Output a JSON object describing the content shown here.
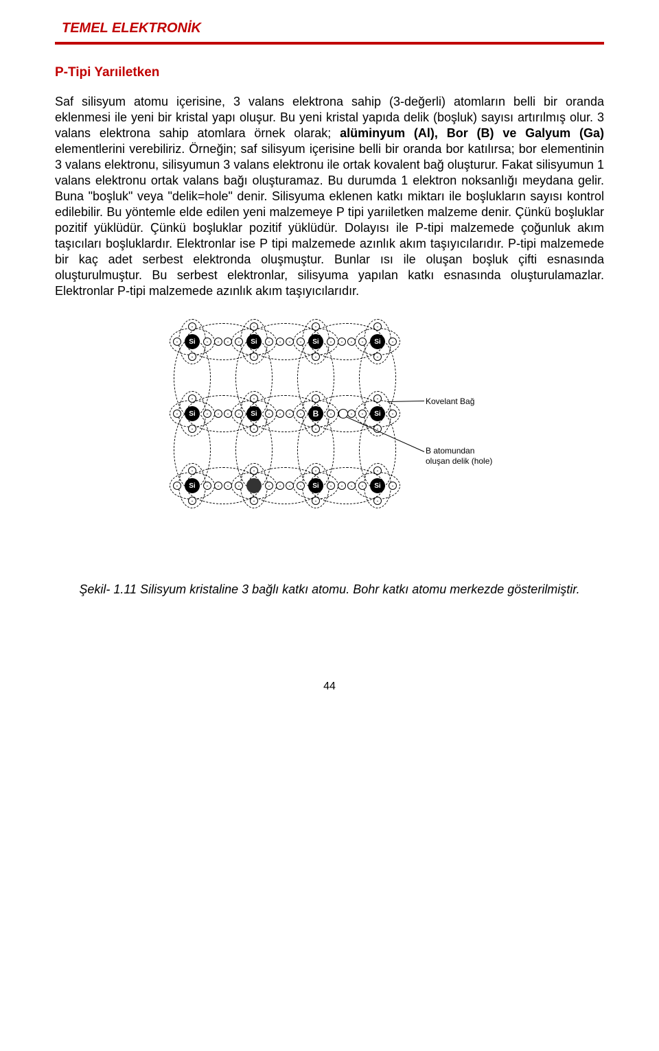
{
  "header": {
    "title": "TEMEL ELEKTRONİK"
  },
  "section": {
    "title": "P-Tipi Yarıiletken"
  },
  "paragraph": {
    "p1a": "Saf silisyum atomu içerisine, 3 valans elektrona sahip (3-değerli) atomların belli bir oranda eklenmesi ile yeni bir kristal yapı oluşur. Bu yeni kristal yapıda delik (boşluk) sayısı artırılmış olur. 3 valans elektrona sahip atomlara örnek olarak; ",
    "p1b": "alüminyum (Al), Bor (B) ve Galyum (Ga)",
    "p1c": " elementlerini verebiliriz. Örneğin; saf silisyum içerisine belli bir oranda bor katılırsa; bor elementinin 3 valans elektronu, silisyumun 3 valans elektronu ile ortak kovalent bağ oluşturur. Fakat silisyumun 1 valans elektronu ortak valans bağı oluşturamaz. Bu durumda 1 elektron noksanlığı meydana gelir. Buna \"boşluk\" veya \"delik=hole\" denir.",
    "p2": "Silisyuma eklenen katkı miktarı ile boşlukların sayısı kontrol edilebilir. Bu yöntemle elde edilen yeni malzemeye P tipi yarıiletken malzeme denir. Çünkü boşluklar pozitif yüklüdür. Çünkü boşluklar pozitif yüklüdür. Dolayısı ile P-tipi malzemede çoğunluk akım taşıcıları boşluklardır. Elektronlar ise P tipi malzemede azınlık akım taşıyıcılarıdır. P-tipi malzemede bir kaç adet serbest elektronda oluşmuştur. Bunlar ısı ile oluşan boşluk çifti esnasında oluşturulmuştur. Bu serbest elektronlar, silisyuma yapılan katkı esnasında oluşturulamazlar. Elektronlar P-tipi malzemede azınlık akım taşıyıcılarıdır."
  },
  "diagram": {
    "atom_label_si": "Si",
    "atom_label_b": "B",
    "electron_glyph": "-",
    "annotation_bond": "Kovelant Bağ",
    "annotation_hole_line1": "B atomundan",
    "annotation_hole_line2": "oluşan delik (hole)",
    "grid": {
      "cols": [
        60,
        150,
        240,
        330
      ],
      "rows": [
        40,
        145,
        250
      ],
      "spacing": 90,
      "orbit_w": 66,
      "orbit_h": 40
    },
    "colors": {
      "stroke": "#000000",
      "atom_fill": "#000000",
      "boron_fill": "#000000",
      "bg": "#ffffff"
    }
  },
  "caption": {
    "text": "Şekil- 1.11 Silisyum kristaline 3 bağlı katkı atomu. Bohr katkı atomu merkezde gösterilmiştir."
  },
  "page_number": "44"
}
